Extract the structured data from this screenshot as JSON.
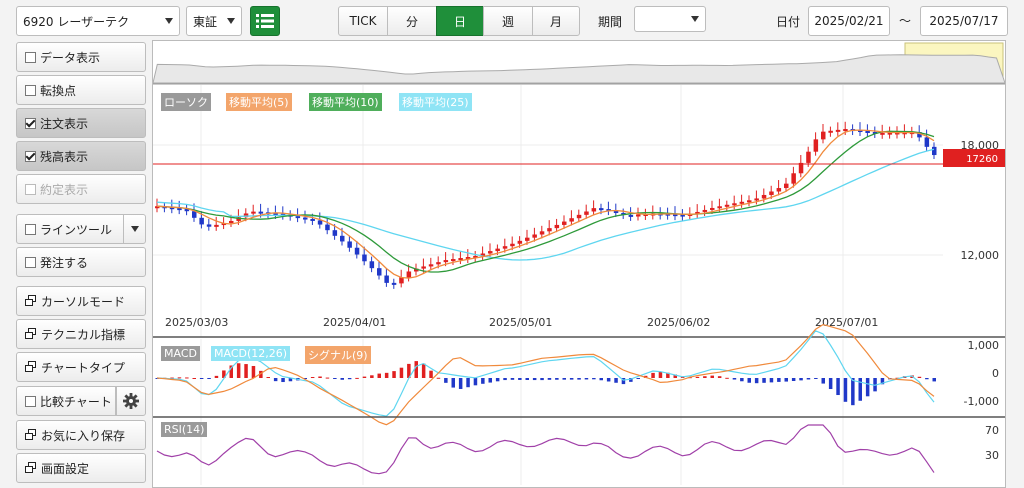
{
  "header": {
    "symbol": "6920 レーザーテク",
    "market": "東証",
    "segments": [
      "TICK",
      "分",
      "日",
      "週",
      "月"
    ],
    "active_segment": "日",
    "period_label": "期間",
    "period_value": "",
    "date_label": "日付",
    "date_from": "2025/02/21",
    "date_sep": "〜",
    "date_to": "2025/07/17"
  },
  "sidebar": {
    "data_display": "データ表示",
    "turning_point": "転換点",
    "order_display": "注文表示",
    "position_display": "残高表示",
    "execution_display": "約定表示",
    "line_tool": "ラインツール",
    "place_order": "発注する",
    "cursor_mode": "カーソルモード",
    "technical": "テクニカル指標",
    "chart_type": "チャートタイプ",
    "compare_chart": "比較チャート",
    "save_favorite": "お気に入り保存",
    "screen_settings": "画面設定"
  },
  "chart": {
    "legend_candles": "ローソク",
    "legend_ma5": "移動平均(5)",
    "legend_ma10": "移動平均(10)",
    "legend_ma25": "移動平均(25)",
    "price_18000": "18,000",
    "price_12000": "12,000",
    "current_price": "17260",
    "dates": [
      "2025/03/03",
      "2025/04/01",
      "2025/05/01",
      "2025/06/02",
      "2025/07/01"
    ],
    "macd_label": "MACD",
    "macd_line_label": "MACD(12,26)",
    "signal_label": "シグナル(9)",
    "macd_1000": "1,000",
    "macd_0": "0",
    "macd_m1000": "-1,000",
    "rsi_label": "RSI(14)",
    "rsi_70": "70",
    "rsi_30": "30",
    "colors": {
      "up": "#e02020",
      "down": "#2038c8",
      "ma5": "#f08a3c",
      "ma10": "#2e9a3a",
      "ma25": "#5fd6f0",
      "accent": "#1f8f3a"
    }
  }
}
